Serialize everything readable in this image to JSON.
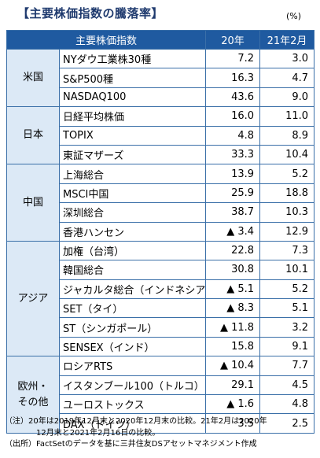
{
  "title": "【主要株価指数の騰落率】",
  "unit": "(%)",
  "headers": {
    "index": "主要株価指数",
    "col1": "20年",
    "col2": "21年2月"
  },
  "groups": [
    {
      "region": "米国",
      "rows": [
        {
          "name": "NYダウ工業株30種",
          "v1": "7.2",
          "v2": "3.0"
        },
        {
          "name": "S&P500種",
          "v1": "16.3",
          "v2": "4.7"
        },
        {
          "name": "NASDAQ100",
          "v1": "43.6",
          "v2": "9.0"
        }
      ]
    },
    {
      "region": "日本",
      "rows": [
        {
          "name": "日経平均株価",
          "v1": "16.0",
          "v2": "11.0"
        },
        {
          "name": "TOPIX",
          "v1": "4.8",
          "v2": "8.9"
        },
        {
          "name": "東証マザーズ",
          "v1": "33.3",
          "v2": "10.4"
        }
      ]
    },
    {
      "region": "中国",
      "rows": [
        {
          "name": "上海総合",
          "v1": "13.9",
          "v2": "5.2"
        },
        {
          "name": "MSCI中国",
          "v1": "25.9",
          "v2": "18.8"
        },
        {
          "name": "深圳総合",
          "v1": "38.7",
          "v2": "10.3"
        },
        {
          "name": "香港ハンセン",
          "v1": "▲ 3.4",
          "v2": "12.9"
        }
      ]
    },
    {
      "region": "アジア",
      "rows": [
        {
          "name": "加権（台湾）",
          "v1": "22.8",
          "v2": "7.3"
        },
        {
          "name": "韓国総合",
          "v1": "30.8",
          "v2": "10.1"
        },
        {
          "name": "ジャカルタ総合（インドネシア）",
          "v1": "▲ 5.1",
          "v2": "5.2"
        },
        {
          "name": "SET（タイ）",
          "v1": "▲ 8.3",
          "v2": "5.1"
        },
        {
          "name": "ST（シンガポール）",
          "v1": "▲ 11.8",
          "v2": "3.2"
        },
        {
          "name": "SENSEX（インド）",
          "v1": "15.8",
          "v2": "9.1"
        }
      ]
    },
    {
      "region": "欧州・その他",
      "rows": [
        {
          "name": "ロシアRTS",
          "v1": "▲ 10.4",
          "v2": "7.7"
        },
        {
          "name": "イスタンブール100（トルコ）",
          "v1": "29.1",
          "v2": "4.5"
        },
        {
          "name": "ユーロストックス",
          "v1": "▲ 1.6",
          "v2": "4.8"
        },
        {
          "name": "DAX（ドイツ）",
          "v1": "3.5",
          "v2": "2.5"
        }
      ]
    }
  ],
  "notes": {
    "line1": "（注）20年は2019年12月末と2020年12月末の比較。21年2月は2020年",
    "line2": "12月末と2021年2月16日の比較。",
    "line3": "（出所）FactSetのデータを基に三井住友DSアセットマネジメント作成"
  }
}
